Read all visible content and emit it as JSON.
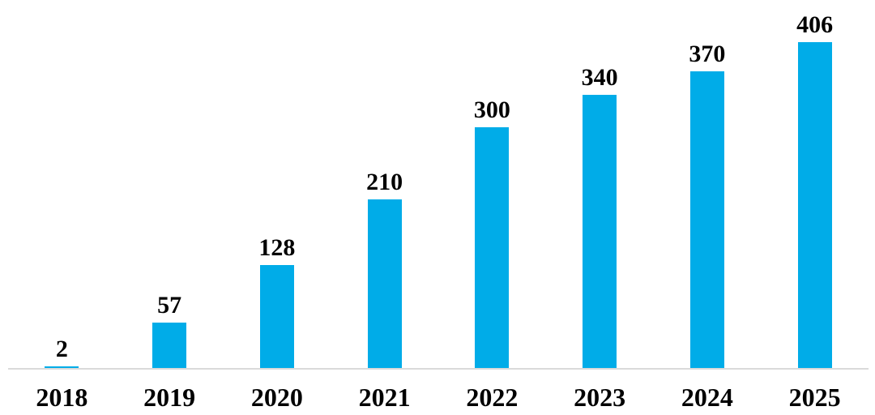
{
  "chart_data": {
    "type": "bar",
    "categories": [
      "2018",
      "2019",
      "2020",
      "2021",
      "2022",
      "2023",
      "2024",
      "2025"
    ],
    "values": [
      2,
      57,
      128,
      210,
      300,
      340,
      370,
      406
    ],
    "title": "",
    "xlabel": "",
    "ylabel": "",
    "ylim": [
      0,
      420
    ],
    "grid": false,
    "legend": null,
    "data_labels": true,
    "bar_color": "#00ACE8",
    "axis_line_color": "#DADADA",
    "label_color": "#000000"
  }
}
